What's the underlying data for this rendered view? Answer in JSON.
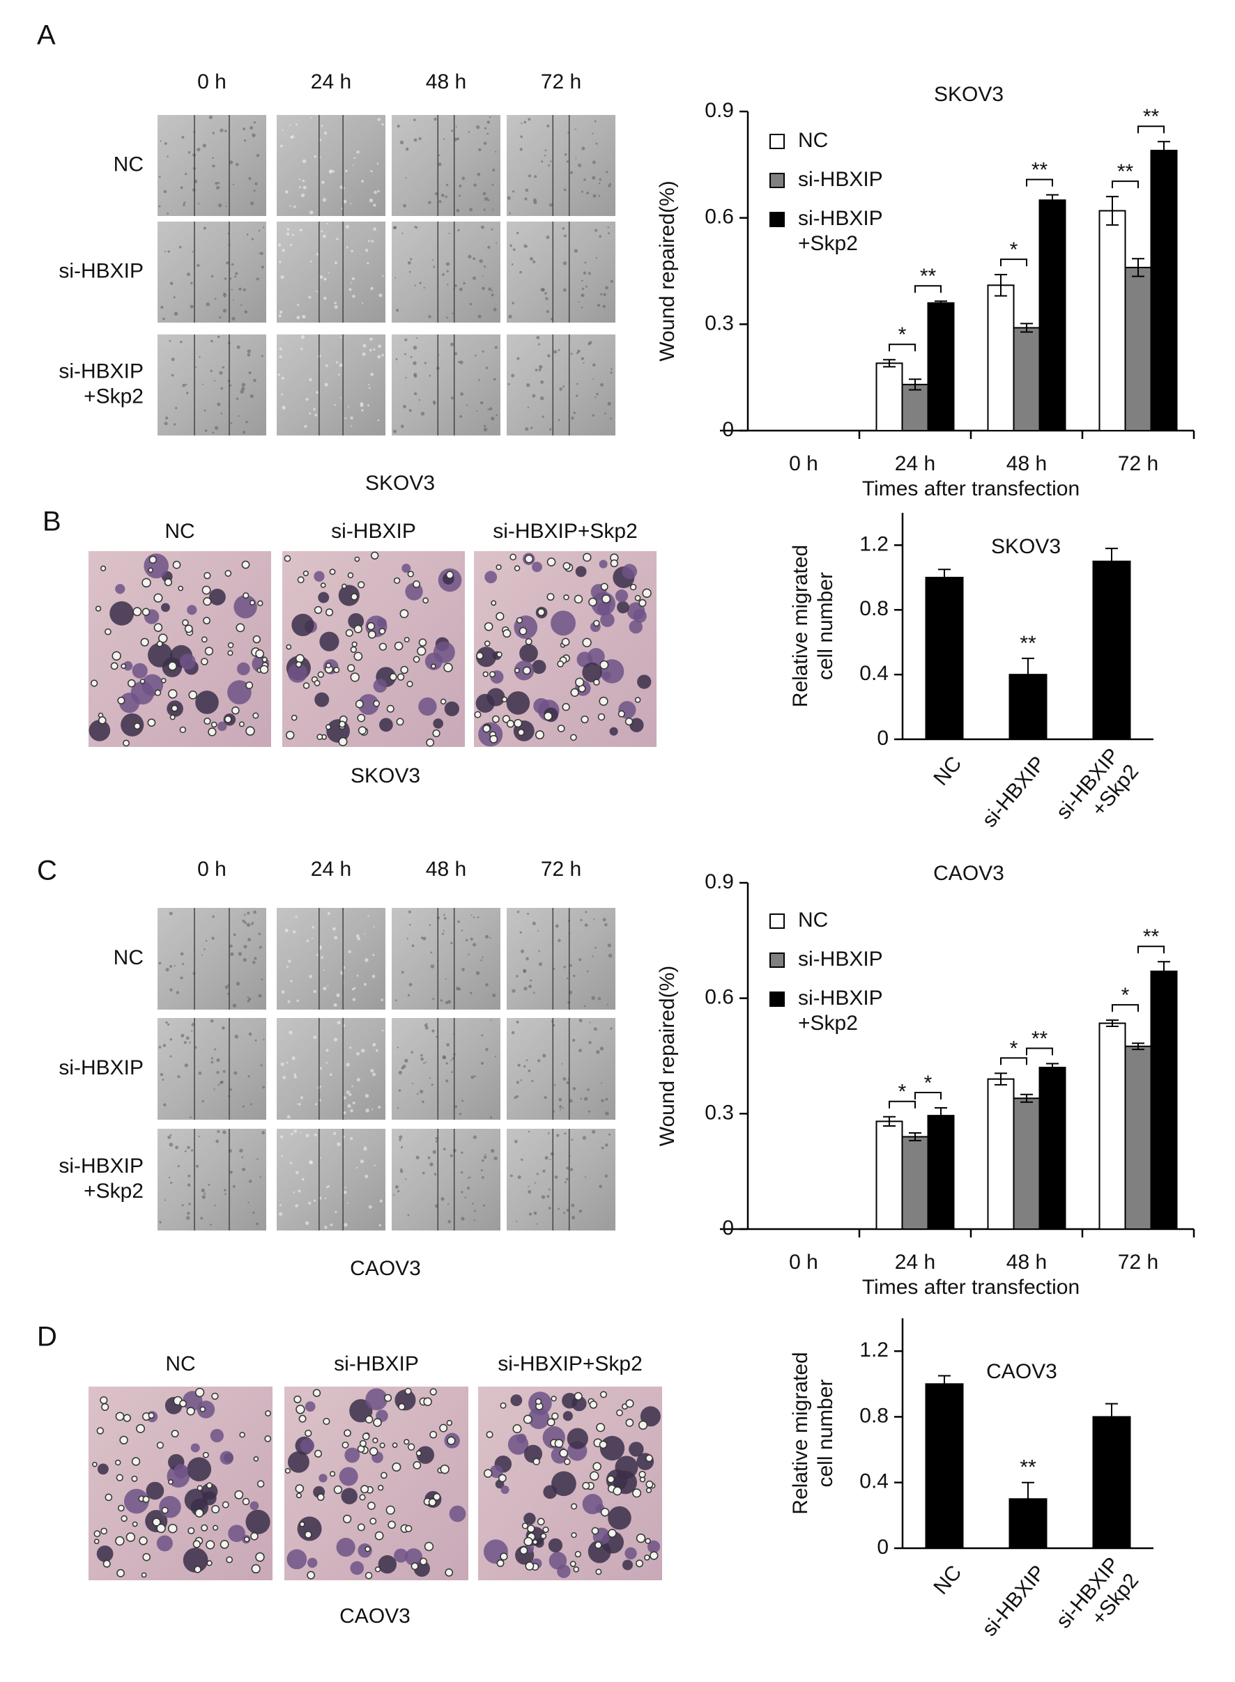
{
  "panel_labels": [
    "A",
    "B",
    "C",
    "D"
  ],
  "wound_healing": [
    {
      "time_labels": [
        "0 h",
        "24 h",
        "48 h",
        "72 h"
      ],
      "group_labels": [
        "NC",
        "si-HBXIP",
        "si-HBXIP\n+Skp2"
      ],
      "cell_line": "SKOV3"
    },
    {
      "time_labels": [
        "0 h",
        "24 h",
        "48 h",
        "72 h"
      ],
      "group_labels": [
        "NC",
        "si-HBXIP",
        "si-HBXIP\n+Skp2"
      ],
      "cell_line": "CAOV3"
    }
  ],
  "transwell": [
    {
      "group_labels": [
        "NC",
        "si-HBXIP",
        "si-HBXIP+Skp2"
      ],
      "cell_line": "SKOV3"
    },
    {
      "group_labels": [
        "NC",
        "si-HBXIP",
        "si-HBXIP+Skp2"
      ],
      "cell_line": "CAOV3"
    }
  ],
  "chart_data": [
    {
      "type": "grouped_bar",
      "title": "SKOV3",
      "x_label": "Times after transfection",
      "y_label": "Wound repaired(%)",
      "categories": [
        "0 h",
        "24 h",
        "48 h",
        "72 h"
      ],
      "series": [
        {
          "name": "NC",
          "color": "#ffffff",
          "values": [
            0,
            0.19,
            0.41,
            0.62
          ],
          "errors": [
            0,
            0.01,
            0.03,
            0.04
          ]
        },
        {
          "name": "si-HBXIP",
          "color": "#808080",
          "values": [
            0,
            0.13,
            0.29,
            0.46
          ],
          "errors": [
            0,
            0.015,
            0.012,
            0.025
          ]
        },
        {
          "name": "si-HBXIP\n+Skp2",
          "color": "#000000",
          "values": [
            0,
            0.36,
            0.65,
            0.79
          ],
          "errors": [
            0,
            0.005,
            0.015,
            0.025
          ]
        }
      ],
      "ylim": [
        0,
        0.9
      ],
      "yticks": [
        0,
        0.3,
        0.6,
        0.9
      ],
      "legend": "upper left",
      "annotations": [
        {
          "text": "*",
          "category": "24 h",
          "series": [
            "NC",
            "si-HBXIP"
          ]
        },
        {
          "text": "**",
          "category": "24 h",
          "series": [
            "si-HBXIP",
            "si-HBXIP\n+Skp2"
          ]
        },
        {
          "text": "*",
          "category": "48 h",
          "series": [
            "NC",
            "si-HBXIP"
          ]
        },
        {
          "text": "**",
          "category": "48 h",
          "series": [
            "si-HBXIP",
            "si-HBXIP\n+Skp2"
          ]
        },
        {
          "text": "**",
          "category": "72 h",
          "series": [
            "NC",
            "si-HBXIP"
          ]
        },
        {
          "text": "**",
          "category": "72 h",
          "series": [
            "si-HBXIP",
            "si-HBXIP\n+Skp2"
          ]
        }
      ]
    },
    {
      "type": "bar",
      "title": "SKOV3",
      "y_label": "Relative migrated\ncell number",
      "categories": [
        "NC",
        "si-HBXIP",
        "si-HBXIP\n+Skp2"
      ],
      "values": [
        1.0,
        0.4,
        1.1
      ],
      "errors": [
        0.05,
        0.1,
        0.08
      ],
      "color": "#000000",
      "ylim": [
        0,
        1.4
      ],
      "yticks": [
        0,
        0.4,
        0.8,
        1.2
      ],
      "annotations": [
        {
          "text": "**",
          "category": "si-HBXIP"
        }
      ]
    },
    {
      "type": "grouped_bar",
      "title": "CAOV3",
      "x_label": "Times after transfection",
      "y_label": "Wound repaired(%)",
      "categories": [
        "0 h",
        "24 h",
        "48 h",
        "72 h"
      ],
      "series": [
        {
          "name": "NC",
          "color": "#ffffff",
          "values": [
            0,
            0.28,
            0.39,
            0.535
          ],
          "errors": [
            0,
            0.012,
            0.015,
            0.008
          ]
        },
        {
          "name": "si-HBXIP",
          "color": "#808080",
          "values": [
            0,
            0.24,
            0.34,
            0.475
          ],
          "errors": [
            0,
            0.01,
            0.01,
            0.008
          ]
        },
        {
          "name": "si-HBXIP\n+Skp2",
          "color": "#000000",
          "values": [
            0,
            0.295,
            0.42,
            0.67
          ],
          "errors": [
            0,
            0.02,
            0.01,
            0.025
          ]
        }
      ],
      "ylim": [
        0,
        0.9
      ],
      "yticks": [
        0,
        0.3,
        0.6,
        0.9
      ],
      "legend": "upper left",
      "annotations": [
        {
          "text": "*",
          "category": "24 h",
          "series": [
            "NC",
            "si-HBXIP"
          ]
        },
        {
          "text": "*",
          "category": "24 h",
          "series": [
            "si-HBXIP",
            "si-HBXIP\n+Skp2"
          ]
        },
        {
          "text": "*",
          "category": "48 h",
          "series": [
            "NC",
            "si-HBXIP"
          ]
        },
        {
          "text": "**",
          "category": "48 h",
          "series": [
            "si-HBXIP",
            "si-HBXIP\n+Skp2"
          ]
        },
        {
          "text": "*",
          "category": "72 h",
          "series": [
            "NC",
            "si-HBXIP"
          ]
        },
        {
          "text": "**",
          "category": "72 h",
          "series": [
            "si-HBXIP",
            "si-HBXIP\n+Skp2"
          ]
        }
      ]
    },
    {
      "type": "bar",
      "title": "CAOV3",
      "y_label": "Relative migrated\ncell number",
      "categories": [
        "NC",
        "si-HBXIP",
        "si-HBXIP\n+Skp2"
      ],
      "values": [
        1.0,
        0.3,
        0.8
      ],
      "errors": [
        0.05,
        0.1,
        0.08
      ],
      "color": "#000000",
      "ylim": [
        0,
        1.4
      ],
      "yticks": [
        0,
        0.4,
        0.8,
        1.2
      ],
      "annotations": [
        {
          "text": "**",
          "category": "si-HBXIP"
        }
      ]
    }
  ]
}
